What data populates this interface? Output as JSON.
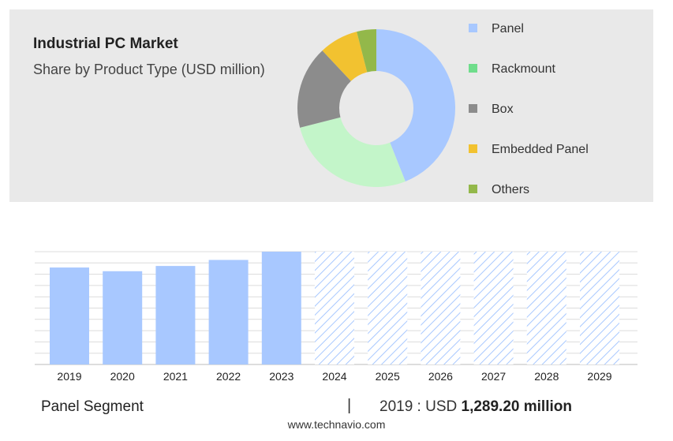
{
  "header": {
    "title": "Industrial PC Market",
    "subtitle": "Share by Product Type (USD million)"
  },
  "legend": [
    {
      "label": "Panel",
      "color": "#a8c8ff"
    },
    {
      "label": "Rackmount",
      "color": "#6fdd8b"
    },
    {
      "label": "Box",
      "color": "#8c8c8c"
    },
    {
      "label": "Embedded Panel",
      "color": "#f2c230"
    },
    {
      "label": "Others",
      "color": "#93b84a"
    }
  ],
  "footer": {
    "segment_label": "Panel Segment",
    "separator": "|",
    "value_prefix": "2019 : USD ",
    "value_amount": "1,289.20 million",
    "website": "www.technavio.com"
  },
  "chart_data": [
    {
      "type": "pie",
      "title": "Industrial PC Market",
      "subtitle": "Share by Product Type (USD million)",
      "categories": [
        "Panel",
        "Rackmount",
        "Box",
        "Embedded Panel",
        "Others"
      ],
      "values": [
        44,
        27,
        17,
        8,
        4
      ],
      "colors": [
        "#a8c8ff",
        "#c3f5c9",
        "#8c8c8c",
        "#f2c230",
        "#93b84a"
      ],
      "donut": true,
      "legend": "right"
    },
    {
      "type": "bar",
      "categories": [
        "2019",
        "2020",
        "2021",
        "2022",
        "2023",
        "2024",
        "2025",
        "2026",
        "2027",
        "2028",
        "2029"
      ],
      "values": [
        1289.2,
        1240,
        1310,
        1390,
        1500,
        null,
        null,
        null,
        null,
        null,
        null
      ],
      "forecast_categories": [
        "2024",
        "2025",
        "2026",
        "2027",
        "2028",
        "2029"
      ],
      "bar_color": "#a8c8ff",
      "grid": true,
      "ylim": [
        0,
        1500
      ]
    }
  ]
}
